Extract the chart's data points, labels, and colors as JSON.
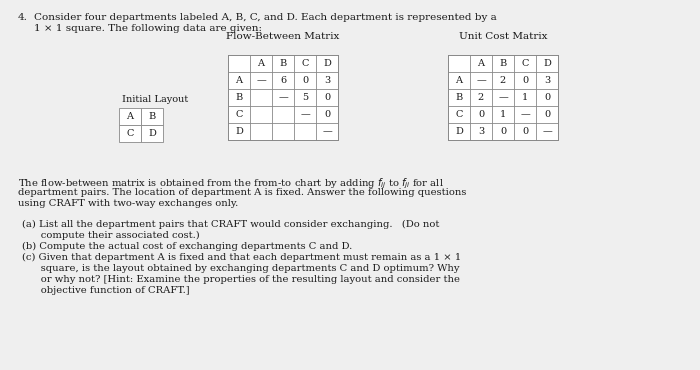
{
  "title_number": "4.",
  "title_text": "Consider four departments labeled A, B, C, and D. Each department is represented by a\n   1 × 1 square. The following data are given:",
  "flow_matrix_title": "Flow-Between Matrix",
  "unit_cost_title": "Unit Cost Matrix",
  "matrix_headers": [
    "A",
    "B",
    "C",
    "D"
  ],
  "flow_matrix": [
    [
      "A",
      "—",
      "6",
      "0",
      "3"
    ],
    [
      "B",
      "",
      "—",
      "5",
      "0"
    ],
    [
      "C",
      "",
      "",
      "—",
      "0"
    ],
    [
      "D",
      "",
      "",
      "",
      "—"
    ]
  ],
  "unit_cost_matrix": [
    [
      "A",
      "—",
      "2",
      "0",
      "3"
    ],
    [
      "B",
      "2",
      "—",
      "1",
      "0"
    ],
    [
      "C",
      "0",
      "1",
      "—",
      "0"
    ],
    [
      "D",
      "3",
      "0",
      "0",
      "—"
    ]
  ],
  "initial_layout_label": "Initial Layout",
  "initial_layout_grid": [
    [
      "A",
      "B"
    ],
    [
      "C",
      "D"
    ]
  ],
  "paragraph_line1": "The flow-between matrix is obtained from the from-to chart by adding $f_{ij}$ to $f_{ji}$ for all",
  "paragraph_line2": "department pairs. The location of department A is fixed. Answer the following questions",
  "paragraph_line3": "using CRAFT with two-way exchanges only.",
  "qa_a1": "(a) List all the department pairs that CRAFT would consider exchanging.   (Do not",
  "qa_a2": "      compute their associated cost.)",
  "qa_b": "(b) Compute the actual cost of exchanging departments C and D.",
  "qa_c1": "(c) Given that department A is fixed and that each department must remain as a 1 × 1",
  "qa_c2": "      square, is the layout obtained by exchanging departments C and D optimum? Why",
  "qa_c3": "      or why not? [Hint: Examine the properties of the resulting layout and consider the",
  "qa_c4": "      objective function of CRAFT.]",
  "bg_color": "#efefef",
  "text_color": "#1a1a1a",
  "table_bg": "#ffffff",
  "table_line_color": "#888888",
  "fs_title": 7.5,
  "fs_table": 7.0,
  "fs_body": 7.2
}
